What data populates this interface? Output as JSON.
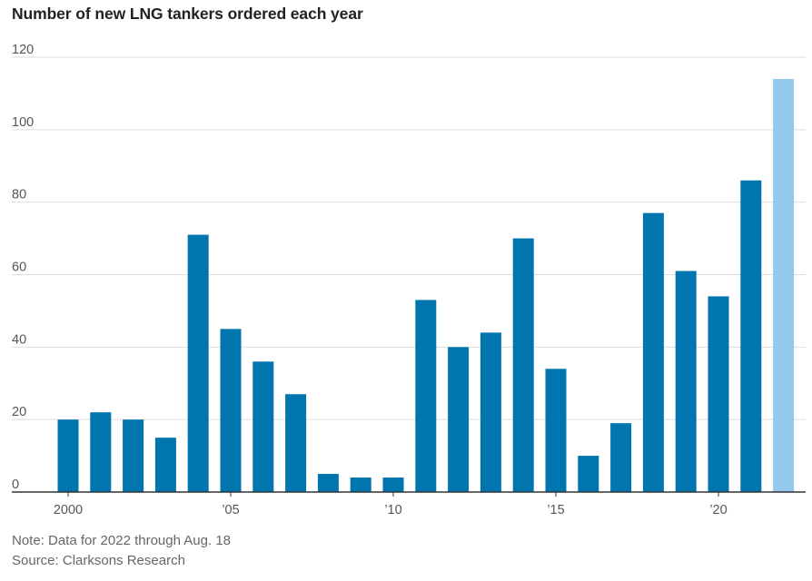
{
  "title": "Number of new LNG tankers ordered each year",
  "note": "Note: Data for 2022 through Aug. 18",
  "source": "Source: Clarksons Research",
  "colors": {
    "bar": "#0175ae",
    "highlight": "#94c9ec",
    "grid": "#dddddd",
    "axis": "#333333",
    "tick_text": "#555555"
  },
  "chart_data": {
    "type": "bar",
    "title": "Number of new LNG tankers ordered each year",
    "xlabel": "",
    "ylabel": "",
    "ylim": [
      0,
      120
    ],
    "yticks": [
      0,
      20,
      40,
      60,
      80,
      100,
      120
    ],
    "categories": [
      "2000",
      "2001",
      "2002",
      "2003",
      "2004",
      "2005",
      "2006",
      "2007",
      "2008",
      "2009",
      "2010",
      "2011",
      "2012",
      "2013",
      "2014",
      "2015",
      "2016",
      "2017",
      "2018",
      "2019",
      "2020",
      "2021",
      "2022"
    ],
    "values": [
      20,
      22,
      20,
      15,
      71,
      45,
      36,
      27,
      5,
      4,
      4,
      53,
      40,
      44,
      70,
      34,
      10,
      19,
      77,
      61,
      54,
      86,
      114
    ],
    "highlight_index": 22,
    "x_tick_labels": [
      {
        "category": "2000",
        "label": "2000"
      },
      {
        "category": "2005",
        "label": "’05"
      },
      {
        "category": "2010",
        "label": "’10"
      },
      {
        "category": "2015",
        "label": "’15"
      },
      {
        "category": "2020",
        "label": "’20"
      }
    ]
  }
}
